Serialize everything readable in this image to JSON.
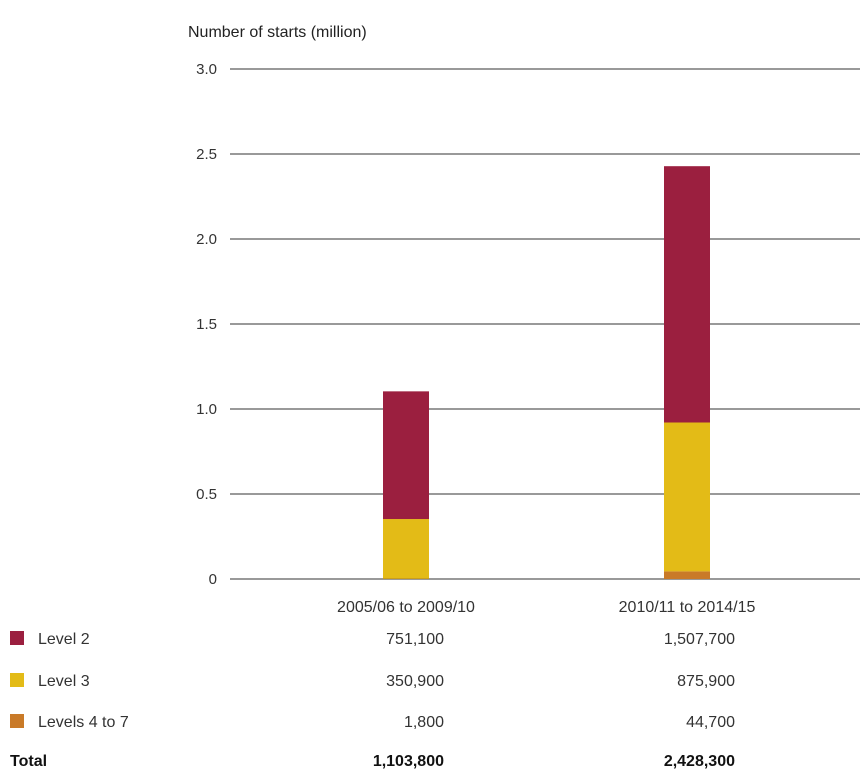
{
  "chart_data": {
    "type": "bar",
    "stacked": true,
    "ylabel": "Number of starts (million)",
    "ylim": [
      0,
      3.0
    ],
    "yticks": [
      "3.0",
      "2.5",
      "2.0",
      "1.5",
      "1.0",
      "0.5",
      "0"
    ],
    "ytick_values": [
      3.0,
      2.5,
      2.0,
      1.5,
      1.0,
      0.5,
      0
    ],
    "grid": true,
    "categories": [
      "2005/06 to 2009/10",
      "2010/11 to 2014/15"
    ],
    "series": [
      {
        "name": "Levels 4 to 7",
        "color": "#c97a28",
        "values": [
          0.0018,
          0.0447
        ],
        "labels": [
          "1,800",
          "44,700"
        ]
      },
      {
        "name": "Level 3",
        "color": "#e3bb17",
        "values": [
          0.3509,
          0.8759
        ],
        "labels": [
          "350,900",
          "875,900"
        ]
      },
      {
        "name": "Level 2",
        "color": "#9b1f3f",
        "values": [
          0.7511,
          1.5077
        ],
        "labels": [
          "751,100",
          "1,507,700"
        ]
      }
    ],
    "table_rows": [
      {
        "name": "Level 2",
        "color": "#9b1f3f",
        "labels": [
          "751,100",
          "1,507,700"
        ]
      },
      {
        "name": "Level 3",
        "color": "#e3bb17",
        "labels": [
          "350,900",
          "875,900"
        ]
      },
      {
        "name": "Levels 4 to 7",
        "color": "#c97a28",
        "labels": [
          "1,800",
          "44,700"
        ]
      }
    ],
    "total": {
      "name": "Total",
      "labels": [
        "1,103,800",
        "2,428,300"
      ]
    }
  }
}
